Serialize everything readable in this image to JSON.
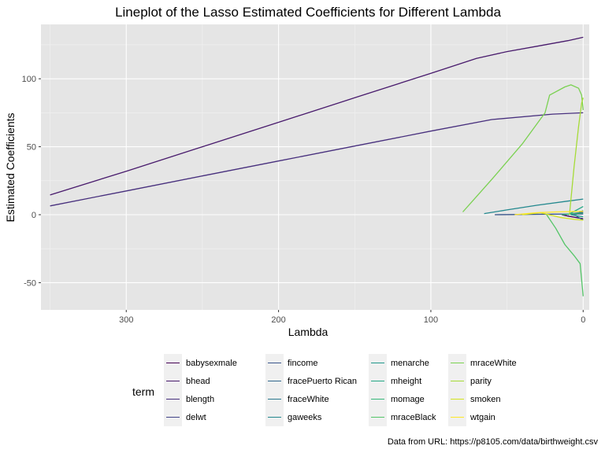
{
  "chart_data": {
    "type": "line",
    "title": "Lineplot of the Lasso Estimated Coefficients for Different Lambda",
    "xlabel": "Lambda",
    "ylabel": "Estimated Coefficients",
    "x_reversed": true,
    "xlim": [
      356,
      -4
    ],
    "ylim": [
      -70,
      140
    ],
    "x_ticks": [
      300,
      200,
      100,
      0
    ],
    "y_ticks": [
      -50,
      0,
      50,
      100
    ],
    "grid": true,
    "legend_title": "term",
    "legend_position": "bottom",
    "caption": "Data from URL: https://p8105.com/data/birthweight.csv",
    "series": [
      {
        "name": "babysexmale",
        "color": "#440154",
        "points": [
          [
            14,
            0
          ],
          [
            10,
            -1
          ],
          [
            5,
            -2
          ],
          [
            0,
            -3
          ]
        ]
      },
      {
        "name": "bhead",
        "color": "#481A6C",
        "points": [
          [
            350,
            14.5
          ],
          [
            300,
            32
          ],
          [
            250,
            50
          ],
          [
            200,
            68
          ],
          [
            150,
            86
          ],
          [
            100,
            104
          ],
          [
            70,
            115
          ],
          [
            50,
            120
          ],
          [
            30,
            124
          ],
          [
            10,
            128
          ],
          [
            0,
            130.5
          ]
        ]
      },
      {
        "name": "blength",
        "color": "#472F7D",
        "points": [
          [
            350,
            6.5
          ],
          [
            300,
            17.5
          ],
          [
            250,
            28.5
          ],
          [
            200,
            39.5
          ],
          [
            150,
            50.5
          ],
          [
            100,
            61.5
          ],
          [
            60,
            70
          ],
          [
            20,
            74
          ],
          [
            0,
            75
          ]
        ]
      },
      {
        "name": "delwt",
        "color": "#414487",
        "points": [
          [
            12,
            0
          ],
          [
            6,
            1
          ],
          [
            2,
            1.5
          ],
          [
            0,
            1.8
          ]
        ]
      },
      {
        "name": "fincome",
        "color": "#39568C",
        "points": [
          [
            58,
            0
          ],
          [
            40,
            0.2
          ],
          [
            20,
            0.4
          ],
          [
            0,
            0.5
          ]
        ]
      },
      {
        "name": "fracePuerto Rican",
        "color": "#31688E",
        "points": [
          [
            6,
            0
          ],
          [
            3,
            -2
          ],
          [
            0,
            -4
          ]
        ]
      },
      {
        "name": "fraceWhite",
        "color": "#2A788E",
        "points": [
          [
            5,
            0
          ],
          [
            2,
            2
          ],
          [
            0,
            3
          ]
        ]
      },
      {
        "name": "gaweeks",
        "color": "#23888E",
        "points": [
          [
            65,
            0.8
          ],
          [
            50,
            3.5
          ],
          [
            30,
            7
          ],
          [
            10,
            10
          ],
          [
            0,
            11.5
          ]
        ]
      },
      {
        "name": "menarche",
        "color": "#1F988B",
        "points": [
          [
            8,
            0
          ],
          [
            4,
            -0.8
          ],
          [
            0,
            -1.5
          ]
        ]
      },
      {
        "name": "mheight",
        "color": "#22A884",
        "points": [
          [
            10,
            0
          ],
          [
            5,
            3
          ],
          [
            0,
            6
          ]
        ]
      },
      {
        "name": "momage",
        "color": "#35B779",
        "points": [
          [
            14,
            0
          ],
          [
            7,
            0.8
          ],
          [
            0,
            1.2
          ]
        ]
      },
      {
        "name": "mraceBlack",
        "color": "#54C568",
        "points": [
          [
            24,
            0
          ],
          [
            18,
            -10
          ],
          [
            12,
            -22
          ],
          [
            6,
            -30
          ],
          [
            2,
            -36
          ],
          [
            0,
            -60
          ]
        ]
      },
      {
        "name": "mraceWhite",
        "color": "#7AD151",
        "points": [
          [
            79,
            2
          ],
          [
            60,
            26
          ],
          [
            40,
            52
          ],
          [
            25,
            75
          ],
          [
            22,
            88
          ],
          [
            12,
            94
          ],
          [
            8,
            95.5
          ],
          [
            3,
            93
          ],
          [
            1,
            88
          ],
          [
            0,
            77
          ]
        ]
      },
      {
        "name": "parity",
        "color": "#A5DB36",
        "points": [
          [
            9,
            0
          ],
          [
            6,
            35
          ],
          [
            3,
            65
          ],
          [
            1,
            82
          ],
          [
            0,
            86
          ]
        ]
      },
      {
        "name": "smoken",
        "color": "#D2E21B",
        "points": [
          [
            40,
            0
          ],
          [
            28,
            1.5
          ],
          [
            15,
            -2
          ],
          [
            5,
            -3.5
          ],
          [
            0,
            -4
          ]
        ]
      },
      {
        "name": "wtgain",
        "color": "#FDE725",
        "points": [
          [
            45,
            0
          ],
          [
            30,
            1.5
          ],
          [
            18,
            2
          ],
          [
            8,
            2.3
          ],
          [
            0,
            2.5
          ]
        ]
      }
    ]
  }
}
